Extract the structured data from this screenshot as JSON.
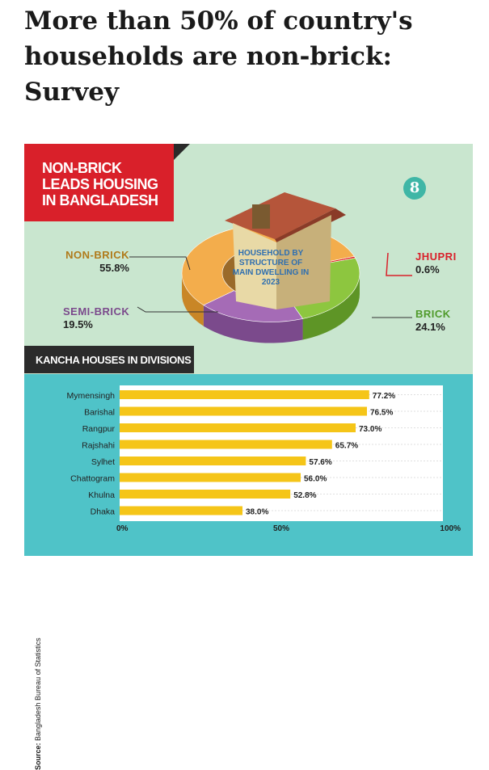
{
  "headline": "More than 50% of country's households are non-brick: Survey",
  "banner": {
    "lines": [
      "NON-BRICK",
      "LEADS HOUSING",
      "IN BANGLADESH"
    ]
  },
  "logo": {
    "glyph": "8"
  },
  "donut": {
    "center_text": [
      "HOUSEHOLD BY",
      "STRUCTURE OF",
      "MAIN DWELLING IN",
      "2023"
    ],
    "slices": [
      {
        "name": "NON-BRICK",
        "value_label": "55.8%",
        "value": 55.8,
        "color": "#f3ad4c",
        "side_color": "#c98626",
        "label_color": "#b07a1a"
      },
      {
        "name": "SEMI-BRICK",
        "value_label": "19.5%",
        "value": 19.5,
        "color": "#a56bb6",
        "side_color": "#7b4a8c",
        "label_color": "#7b4a8c"
      },
      {
        "name": "BRICK",
        "value_label": "24.1%",
        "value": 24.1,
        "color": "#8dc63f",
        "side_color": "#5e9526",
        "label_color": "#4f9a2a"
      },
      {
        "name": "JHUPRI",
        "value_label": "0.6%",
        "value": 0.6,
        "color": "#e02020",
        "side_color": "#a01010",
        "label_color": "#d9202a"
      }
    ]
  },
  "divisions_title": "KANCHA HOUSES IN DIVISIONS",
  "source": {
    "label": "Source:",
    "text": " Bangladesh Bureau of Statistics"
  },
  "chart_data": {
    "type": "bar",
    "orientation": "horizontal",
    "title": "KANCHA HOUSES IN DIVISIONS",
    "categories": [
      "Mymensingh",
      "Barishal",
      "Rangpur",
      "Rajshahi",
      "Sylhet",
      "Chattogram",
      "Khulna",
      "Dhaka"
    ],
    "values": [
      77.2,
      76.5,
      73.0,
      65.7,
      57.6,
      56.0,
      52.8,
      38.0
    ],
    "value_labels": [
      "77.2%",
      "76.5%",
      "73.0%",
      "65.7%",
      "57.6%",
      "56.0%",
      "52.8%",
      "38.0%"
    ],
    "xlim": [
      0,
      100
    ],
    "xticks": [
      0,
      50,
      100
    ],
    "xtick_labels": [
      "0%",
      "50%",
      "100%"
    ],
    "grid": true,
    "bar_color": "#f5c518"
  }
}
